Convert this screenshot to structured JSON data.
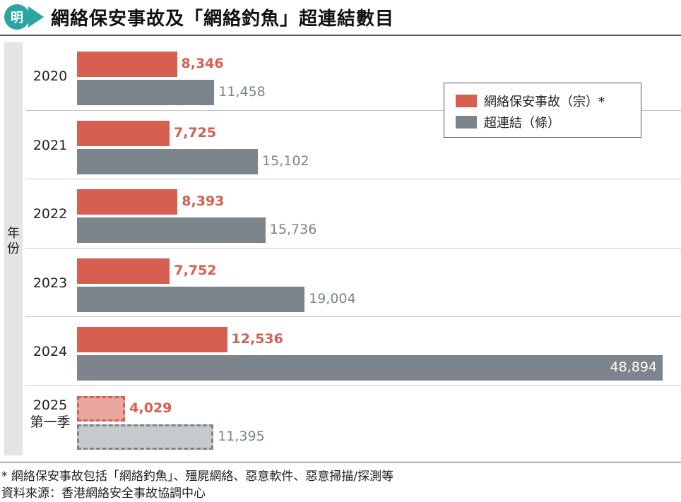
{
  "header": {
    "logo_text": "明",
    "title": "網絡保安事故及「網絡釣魚」超連結數目"
  },
  "yaxis": {
    "label_line1": "年",
    "label_line2": "份"
  },
  "legend": {
    "incidents": "網絡保安事故（宗）*",
    "links": "超連結（條）"
  },
  "colors": {
    "incidents": "#d65f52",
    "links": "#7b858b",
    "incidents_partial": "#eaa79f",
    "links_partial": "#c6cacd"
  },
  "chart_data": {
    "type": "bar",
    "orientation": "horizontal",
    "categories": [
      "2020",
      "2021",
      "2022",
      "2023",
      "2024",
      "2025 第一季"
    ],
    "category_lines": [
      [
        "2020"
      ],
      [
        "2021"
      ],
      [
        "2022"
      ],
      [
        "2023"
      ],
      [
        "2024"
      ],
      [
        "2025",
        "第一季"
      ]
    ],
    "series": [
      {
        "name": "網絡保安事故（宗）*",
        "values": [
          8346,
          7725,
          8393,
          7752,
          12536,
          4029
        ],
        "labels": [
          "8,346",
          "7,725",
          "8,393",
          "7,752",
          "12,536",
          "4,029"
        ]
      },
      {
        "name": "超連結（條）",
        "values": [
          11458,
          15102,
          15736,
          19004,
          48894,
          11395
        ],
        "labels": [
          "11,458",
          "15,102",
          "15,736",
          "19,004",
          "48,894",
          "11,395"
        ]
      }
    ],
    "partial_category_index": 5,
    "xlim": [
      0,
      48894
    ],
    "ylabel": "年份",
    "legend_position": "top-right",
    "grid": false
  },
  "footnotes": {
    "note": "* 網絡保安事故包括「網絡釣魚」、殭屍網絡、惡意軟件、惡意掃描/探測等",
    "source": "資料來源：香港網絡安全事故協調中心"
  }
}
